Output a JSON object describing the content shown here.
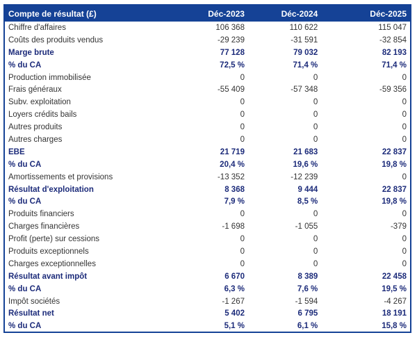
{
  "page": {
    "background_color": "#ffffff"
  },
  "table": {
    "accent_color": "#154296",
    "bold_text_color": "#1c2b7a",
    "normal_text_color": "#333333",
    "header": {
      "title": "Compte de résultat (£)",
      "columns": [
        "Déc-2023",
        "Déc-2024",
        "Déc-2025"
      ]
    },
    "rows": [
      {
        "label": "Chiffre d'affaires",
        "values": [
          "106 368",
          "110 622",
          "115 047"
        ],
        "emphasis": false
      },
      {
        "label": "Coûts des produits vendus",
        "values": [
          "-29 239",
          "-31 591",
          "-32 854"
        ],
        "emphasis": false
      },
      {
        "label": "Marge brute",
        "values": [
          "77 128",
          "79 032",
          "82 193"
        ],
        "emphasis": true
      },
      {
        "label": "% du CA",
        "values": [
          "72,5 %",
          "71,4 %",
          "71,4 %"
        ],
        "emphasis": true
      },
      {
        "label": "Production immobilisée",
        "values": [
          "0",
          "0",
          "0"
        ],
        "emphasis": false
      },
      {
        "label": "Frais généraux",
        "values": [
          "-55 409",
          "-57 348",
          "-59 356"
        ],
        "emphasis": false
      },
      {
        "label": "Subv. exploitation",
        "values": [
          "0",
          "0",
          "0"
        ],
        "emphasis": false
      },
      {
        "label": "Loyers crédits bails",
        "values": [
          "0",
          "0",
          "0"
        ],
        "emphasis": false
      },
      {
        "label": "Autres produits",
        "values": [
          "0",
          "0",
          "0"
        ],
        "emphasis": false
      },
      {
        "label": "Autres charges",
        "values": [
          "0",
          "0",
          "0"
        ],
        "emphasis": false
      },
      {
        "label": "EBE",
        "values": [
          "21 719",
          "21 683",
          "22 837"
        ],
        "emphasis": true
      },
      {
        "label": "% du CA",
        "values": [
          "20,4 %",
          "19,6 %",
          "19,8 %"
        ],
        "emphasis": true
      },
      {
        "label": "Amortissements et provisions",
        "values": [
          "-13 352",
          "-12 239",
          "0"
        ],
        "emphasis": false
      },
      {
        "label": "Résultat d'exploitation",
        "values": [
          "8 368",
          "9 444",
          "22 837"
        ],
        "emphasis": true
      },
      {
        "label": "% du CA",
        "values": [
          "7,9 %",
          "8,5 %",
          "19,8 %"
        ],
        "emphasis": true
      },
      {
        "label": "Produits financiers",
        "values": [
          "0",
          "0",
          "0"
        ],
        "emphasis": false
      },
      {
        "label": "Charges financières",
        "values": [
          "-1 698",
          "-1 055",
          "-379"
        ],
        "emphasis": false
      },
      {
        "label": "Profit (perte) sur cessions",
        "values": [
          "0",
          "0",
          "0"
        ],
        "emphasis": false
      },
      {
        "label": "Produits exceptionnels",
        "values": [
          "0",
          "0",
          "0"
        ],
        "emphasis": false
      },
      {
        "label": "Charges exceptionnelles",
        "values": [
          "0",
          "0",
          "0"
        ],
        "emphasis": false
      },
      {
        "label": "Résultat avant impôt",
        "values": [
          "6 670",
          "8 389",
          "22 458"
        ],
        "emphasis": true
      },
      {
        "label": "% du CA",
        "values": [
          "6,3 %",
          "7,6 %",
          "19,5 %"
        ],
        "emphasis": true
      },
      {
        "label": "Impôt sociétés",
        "values": [
          "-1 267",
          "-1 594",
          "-4 267"
        ],
        "emphasis": false
      },
      {
        "label": "Résultat net",
        "values": [
          "5 402",
          "6 795",
          "18 191"
        ],
        "emphasis": true
      },
      {
        "label": "% du CA",
        "values": [
          "5,1 %",
          "6,1 %",
          "15,8 %"
        ],
        "emphasis": true
      }
    ]
  }
}
